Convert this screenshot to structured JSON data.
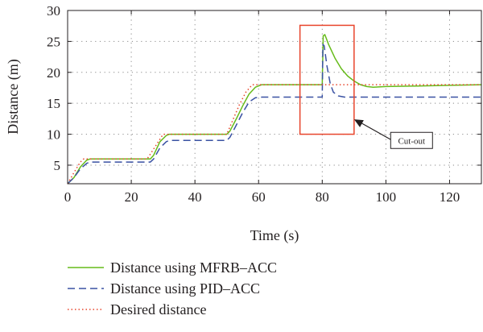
{
  "chart_data": {
    "type": "line",
    "xlabel": "Time (s)",
    "ylabel": "Distance (m)",
    "xlim": [
      0,
      130
    ],
    "ylim": [
      2,
      30
    ],
    "x_ticks": [
      0,
      20,
      40,
      60,
      80,
      100,
      120
    ],
    "y_ticks": [
      5,
      10,
      15,
      20,
      25,
      30
    ],
    "grid": "dotted",
    "legend_position": "bottom",
    "series": [
      {
        "name": "Distance using MFRB–ACC",
        "color": "#66bb1a",
        "dash": "solid",
        "points": [
          [
            0,
            2
          ],
          [
            2,
            3
          ],
          [
            4,
            4.7
          ],
          [
            6,
            5.8
          ],
          [
            7,
            6
          ],
          [
            26,
            6
          ],
          [
            27,
            6.6
          ],
          [
            29,
            8.8
          ],
          [
            31,
            9.8
          ],
          [
            32,
            10
          ],
          [
            50,
            10
          ],
          [
            51,
            10.5
          ],
          [
            53,
            12.5
          ],
          [
            55,
            14.6
          ],
          [
            57,
            16.5
          ],
          [
            59,
            17.6
          ],
          [
            61,
            18
          ],
          [
            80,
            18
          ],
          [
            80.3,
            25.9
          ],
          [
            80.8,
            26.1
          ],
          [
            82,
            24.5
          ],
          [
            84,
            22.3
          ],
          [
            86,
            20.6
          ],
          [
            88,
            19.4
          ],
          [
            90,
            18.6
          ],
          [
            92,
            18
          ],
          [
            94,
            17.7
          ],
          [
            96,
            17.6
          ],
          [
            100,
            17.7
          ],
          [
            110,
            17.8
          ],
          [
            120,
            17.9
          ],
          [
            130,
            18
          ]
        ]
      },
      {
        "name": "Distance using PID–ACC",
        "color": "#3a52a3",
        "dash": "dashed",
        "points": [
          [
            0,
            2
          ],
          [
            2,
            3
          ],
          [
            4,
            4.4
          ],
          [
            6,
            5.3
          ],
          [
            7,
            5.5
          ],
          [
            26,
            5.5
          ],
          [
            27,
            6
          ],
          [
            29,
            7.8
          ],
          [
            31,
            8.8
          ],
          [
            32,
            9
          ],
          [
            50,
            9
          ],
          [
            51,
            9.5
          ],
          [
            53,
            11.5
          ],
          [
            55,
            13.5
          ],
          [
            57,
            15.2
          ],
          [
            59,
            15.9
          ],
          [
            61,
            16
          ],
          [
            80,
            16
          ],
          [
            80.2,
            24.5
          ],
          [
            80.6,
            24.3
          ],
          [
            81.5,
            21
          ],
          [
            82.5,
            18.2
          ],
          [
            83.5,
            16.8
          ],
          [
            85,
            16.2
          ],
          [
            87,
            16
          ],
          [
            130,
            16
          ]
        ]
      },
      {
        "name": "Desired distance",
        "color": "#e8452c",
        "dash": "dotted",
        "points": [
          [
            0,
            2
          ],
          [
            2,
            3.8
          ],
          [
            4,
            5.5
          ],
          [
            5,
            6
          ],
          [
            25,
            6
          ],
          [
            27,
            7.6
          ],
          [
            29,
            9.2
          ],
          [
            30,
            10
          ],
          [
            50,
            10
          ],
          [
            52,
            12.4
          ],
          [
            54,
            14.8
          ],
          [
            56,
            16.8
          ],
          [
            58,
            18
          ],
          [
            130,
            18
          ]
        ]
      }
    ],
    "annotations": [
      {
        "label": "Cut-out",
        "box_x_range": [
          73,
          90
        ],
        "box_y_range": [
          10,
          27.6
        ],
        "arrow_from": [
          102,
          9
        ],
        "arrow_to": [
          90,
          12.4
        ],
        "box_color": "#e8452c"
      }
    ]
  }
}
